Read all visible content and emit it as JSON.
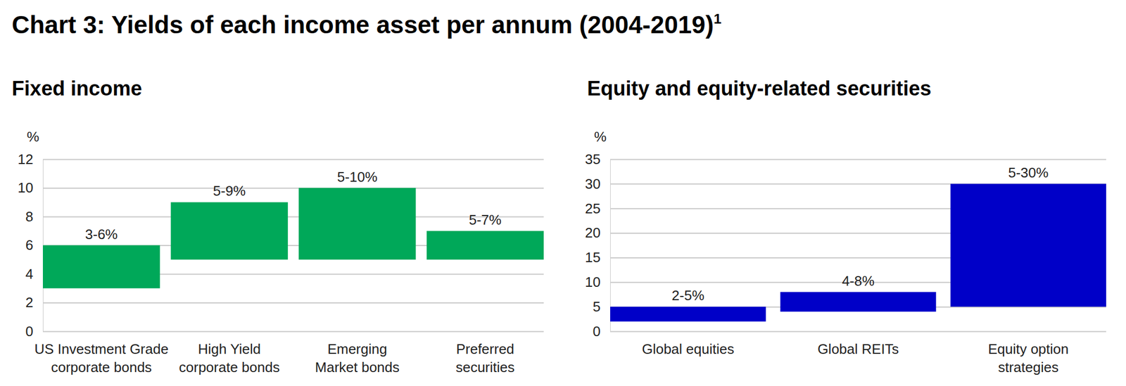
{
  "title": "Chart 3: Yields of each income asset per annum (2004-2019)",
  "title_footnote": "1",
  "chart_data": [
    {
      "type": "bar",
      "title": "Fixed income",
      "y_label": "%",
      "categories": [
        "US Investment Grade\ncorporate bonds",
        "High Yield\ncorporate bonds",
        "Emerging\nMarket bonds",
        "Preferred\nsecurities"
      ],
      "values": [
        [
          3,
          6
        ],
        [
          5,
          9
        ],
        [
          5,
          10
        ],
        [
          5,
          7
        ]
      ],
      "value_labels": [
        "3-6%",
        "5-9%",
        "5-10%",
        "5-7%"
      ],
      "data_labels": true,
      "color": "#00a859",
      "ylim": [
        0,
        12
      ],
      "yticks": [
        0,
        2,
        4,
        6,
        8,
        10,
        12
      ],
      "grid": true
    },
    {
      "type": "bar",
      "title": "Equity and equity-related securities",
      "y_label": "%",
      "categories": [
        "Global equities",
        "Global REITs",
        "Equity option\nstrategies"
      ],
      "values": [
        [
          2,
          5
        ],
        [
          4,
          8
        ],
        [
          5,
          30
        ]
      ],
      "value_labels": [
        "2-5%",
        "4-8%",
        "5-30%"
      ],
      "data_labels": true,
      "color": "#0000c8",
      "ylim": [
        0,
        35
      ],
      "yticks": [
        0,
        5,
        10,
        15,
        20,
        25,
        30,
        35
      ],
      "grid": true
    }
  ]
}
